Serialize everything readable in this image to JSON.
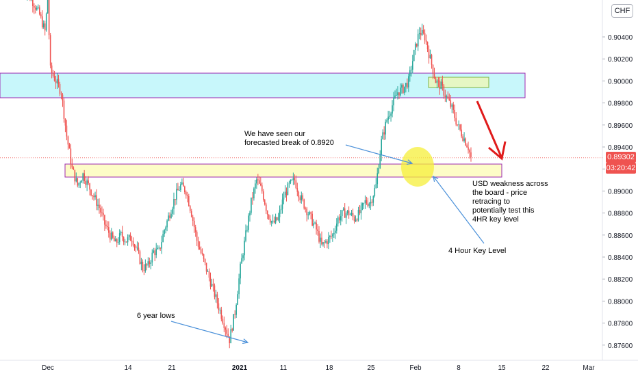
{
  "chart_data": {
    "type": "candlestick",
    "currency": "CHF",
    "y_ticks": [
      "0.90400",
      "0.90200",
      "0.90000",
      "0.89800",
      "0.89600",
      "0.89400",
      "0.89200",
      "0.89000",
      "0.88800",
      "0.88600",
      "0.88400",
      "0.88200",
      "0.88000",
      "0.87800",
      "0.87600"
    ],
    "y_tick_values": [
      0.904,
      0.902,
      0.9,
      0.898,
      0.896,
      0.894,
      0.892,
      0.89,
      0.888,
      0.886,
      0.884,
      0.882,
      0.88,
      0.878,
      0.876
    ],
    "x_ticks": [
      {
        "label": "Dec",
        "bold": false
      },
      {
        "label": "14",
        "bold": false
      },
      {
        "label": "21",
        "bold": false
      },
      {
        "label": "2021",
        "bold": true
      },
      {
        "label": "11",
        "bold": false
      },
      {
        "label": "18",
        "bold": false
      },
      {
        "label": "25",
        "bold": false
      },
      {
        "label": "Feb",
        "bold": false
      },
      {
        "label": "8",
        "bold": false
      },
      {
        "label": "15",
        "bold": false
      },
      {
        "label": "22",
        "bold": false
      },
      {
        "label": "Mar",
        "bold": false
      }
    ],
    "last_price": "0.89302",
    "last_price_value": 0.89302,
    "countdown": "03:20:42",
    "price_path": [
      [
        0,
        0.9085
      ],
      [
        2,
        0.9078
      ],
      [
        4,
        0.907
      ],
      [
        6,
        0.906
      ],
      [
        8,
        0.9045
      ],
      [
        9,
        0.9075
      ],
      [
        10,
        0.901
      ],
      [
        12,
        0.9
      ],
      [
        14,
        0.899
      ],
      [
        16,
        0.895
      ],
      [
        18,
        0.892
      ],
      [
        20,
        0.8905
      ],
      [
        22,
        0.8915
      ],
      [
        24,
        0.8905
      ],
      [
        26,
        0.8895
      ],
      [
        28,
        0.8885
      ],
      [
        30,
        0.887
      ],
      [
        32,
        0.886
      ],
      [
        34,
        0.8852
      ],
      [
        36,
        0.886
      ],
      [
        38,
        0.8855
      ],
      [
        40,
        0.8858
      ],
      [
        42,
        0.8845
      ],
      [
        44,
        0.883
      ],
      [
        46,
        0.8832
      ],
      [
        48,
        0.8845
      ],
      [
        50,
        0.8845
      ],
      [
        52,
        0.8865
      ],
      [
        54,
        0.888
      ],
      [
        56,
        0.8895
      ],
      [
        58,
        0.8905
      ],
      [
        60,
        0.89
      ],
      [
        62,
        0.888
      ],
      [
        64,
        0.8855
      ],
      [
        66,
        0.884
      ],
      [
        68,
        0.8825
      ],
      [
        70,
        0.881
      ],
      [
        72,
        0.8795
      ],
      [
        74,
        0.878
      ],
      [
        76,
        0.8765
      ],
      [
        78,
        0.879
      ],
      [
        80,
        0.883
      ],
      [
        82,
        0.886
      ],
      [
        84,
        0.889
      ],
      [
        86,
        0.891
      ],
      [
        88,
        0.89
      ],
      [
        90,
        0.888
      ],
      [
        92,
        0.887
      ],
      [
        94,
        0.8875
      ],
      [
        96,
        0.8895
      ],
      [
        98,
        0.8905
      ],
      [
        100,
        0.891
      ],
      [
        102,
        0.8895
      ],
      [
        104,
        0.8885
      ],
      [
        106,
        0.8875
      ],
      [
        108,
        0.8865
      ],
      [
        110,
        0.885
      ],
      [
        112,
        0.8855
      ],
      [
        114,
        0.886
      ],
      [
        116,
        0.8875
      ],
      [
        118,
        0.888
      ],
      [
        120,
        0.888
      ],
      [
        122,
        0.8875
      ],
      [
        124,
        0.888
      ],
      [
        126,
        0.889
      ],
      [
        128,
        0.889
      ],
      [
        130,
        0.8905
      ],
      [
        132,
        0.8945
      ],
      [
        134,
        0.8965
      ],
      [
        136,
        0.8978
      ],
      [
        138,
        0.899
      ],
      [
        140,
        0.8993
      ],
      [
        142,
        0.9
      ],
      [
        144,
        0.9025
      ],
      [
        146,
        0.9045
      ],
      [
        148,
        0.904
      ],
      [
        150,
        0.902
      ],
      [
        152,
        0.9
      ],
      [
        154,
        0.8995
      ],
      [
        156,
        0.8985
      ],
      [
        158,
        0.8975
      ],
      [
        160,
        0.896
      ],
      [
        162,
        0.895
      ],
      [
        164,
        0.894
      ],
      [
        165,
        0.893
      ]
    ]
  },
  "annotations": {
    "forecast_note": "We have seen our\nforecasted break of 0.8920",
    "usd_note": "USD weakness across\nthe board - price\nretracing to\npotentially test this\n4HR key level",
    "key_level_note": "4 Hour Key Level",
    "lows_note": "6 year lows"
  },
  "colors": {
    "bull": "#26a69a",
    "bear": "#ef5350",
    "zone_top_fill": "#c8f7fb",
    "zone_top_border": "#9c27b0",
    "zone_bottom_fill": "#fdfcc7",
    "zone_bottom_border": "#9c27b0",
    "highlight_circle": "#f5ef3a",
    "arrow_blue": "#4a90d9",
    "arrow_red": "#e01b1b",
    "price_label_bg": "#ef5350"
  }
}
